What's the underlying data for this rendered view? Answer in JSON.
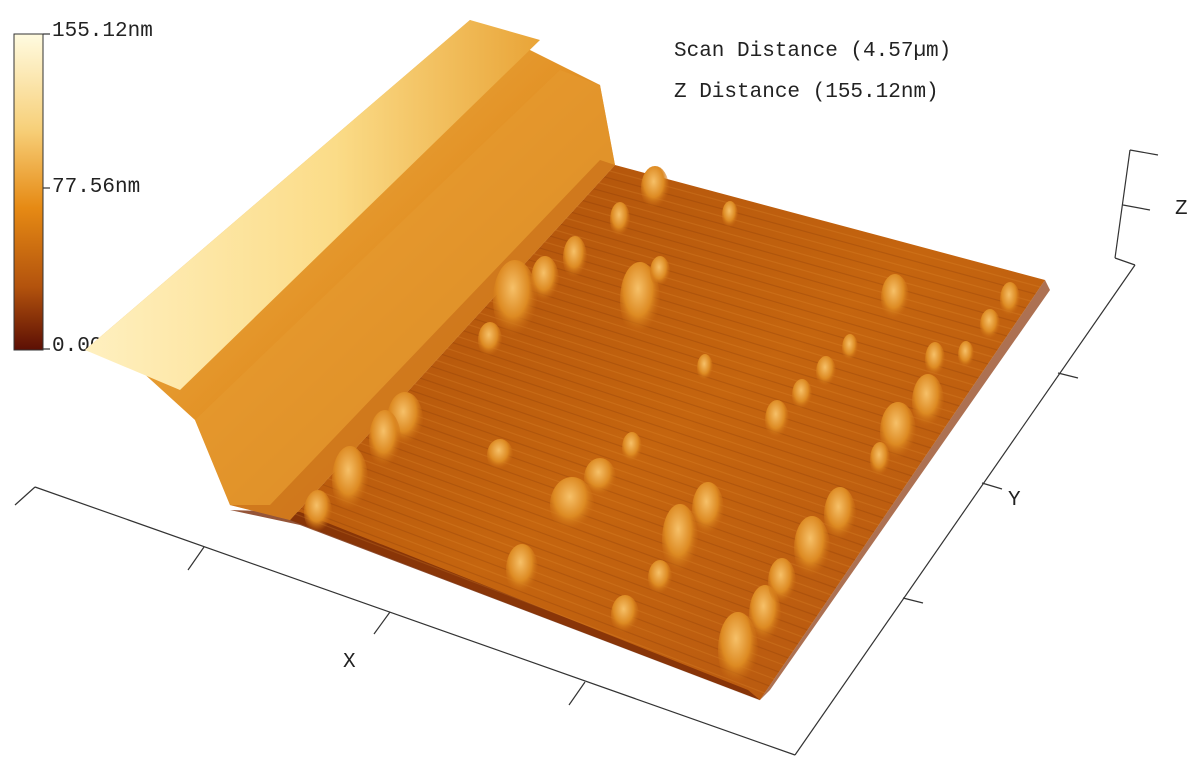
{
  "colorbar": {
    "max_label": "155.12nm",
    "mid_label": "77.56nm",
    "min_label": "0.00nm",
    "colors": [
      "#fffbe0",
      "#f7d07a",
      "#e68a14",
      "#b3530d",
      "#5c0f04"
    ]
  },
  "info": {
    "scan_distance": "Scan Distance (4.57µm)",
    "z_distance": "Z Distance (155.12nm)"
  },
  "axes": {
    "x": "X",
    "y": "Y",
    "z": "Z"
  },
  "surface": {
    "ridge_color": "#fbdc88",
    "base_color": "#c5650f",
    "shadow_color": "#7a2a06",
    "peak_count_visible": 40
  }
}
